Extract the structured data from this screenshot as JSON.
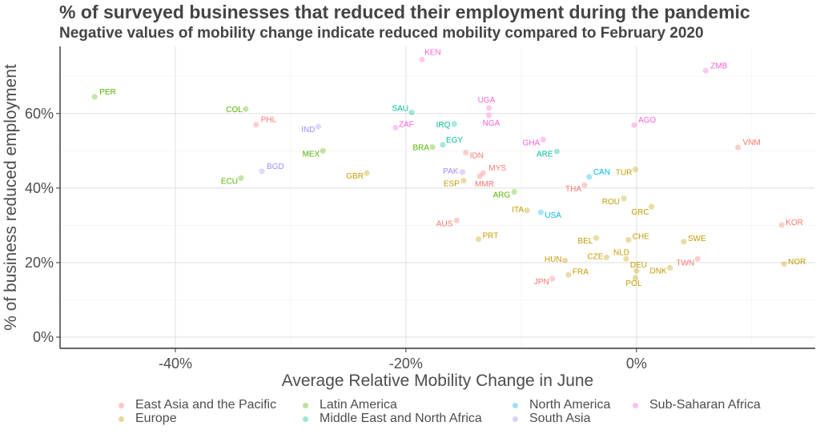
{
  "chart_data": {
    "type": "scatter",
    "title": "% of surveyed businesses that reduced their employment during the pandemic",
    "subtitle": "Negative values of mobility change indicate reduced mobility compared to February 2020",
    "xlabel": "Average Relative Mobility Change in June",
    "ylabel": "% of business reduced employment",
    "xlim": [
      -50,
      15.5
    ],
    "ylim": [
      -3,
      78
    ],
    "x_ticks": [
      -40,
      -20,
      0
    ],
    "x_tick_labels": [
      "-40%",
      "-20%",
      "0%"
    ],
    "y_ticks": [
      0,
      20,
      40,
      60
    ],
    "y_tick_labels": [
      "0%",
      "20%",
      "40%",
      "60%"
    ],
    "grid": true,
    "legend_position": "bottom",
    "series": [
      {
        "name": "East Asia and the Pacific",
        "color": "#F8766D",
        "points": [
          {
            "label": "PHL",
            "x": -33.0,
            "y": 57.0
          },
          {
            "label": "IDN",
            "x": -14.8,
            "y": 49.5
          },
          {
            "label": "MYS",
            "x": -13.3,
            "y": 44.0
          },
          {
            "label": "MMR",
            "x": -13.6,
            "y": 43.2
          },
          {
            "label": "AUS",
            "x": -15.6,
            "y": 31.3
          },
          {
            "label": "THA",
            "x": -4.5,
            "y": 40.8
          },
          {
            "label": "JPN",
            "x": -7.3,
            "y": 15.7
          },
          {
            "label": "VNM",
            "x": 8.8,
            "y": 50.9
          },
          {
            "label": "KOR",
            "x": 12.6,
            "y": 30.1
          },
          {
            "label": "TWN",
            "x": 5.3,
            "y": 21.0
          }
        ]
      },
      {
        "name": "Europe",
        "color": "#C49A00",
        "points": [
          {
            "label": "GBR",
            "x": -23.4,
            "y": 44.0
          },
          {
            "label": "ESP",
            "x": -15.0,
            "y": 42.0
          },
          {
            "label": "ITA",
            "x": -9.5,
            "y": 34.0
          },
          {
            "label": "PRT",
            "x": -13.7,
            "y": 26.3
          },
          {
            "label": "TUR",
            "x": -0.1,
            "y": 45.0
          },
          {
            "label": "ROU",
            "x": -1.1,
            "y": 37.2
          },
          {
            "label": "GRC",
            "x": 1.3,
            "y": 35.0
          },
          {
            "label": "BEL",
            "x": -3.5,
            "y": 26.6
          },
          {
            "label": "CHE",
            "x": -0.7,
            "y": 26.1
          },
          {
            "label": "SWE",
            "x": 4.1,
            "y": 25.6
          },
          {
            "label": "HUN",
            "x": -6.2,
            "y": 20.6
          },
          {
            "label": "CZE",
            "x": -2.6,
            "y": 21.4
          },
          {
            "label": "NLD",
            "x": -0.9,
            "y": 21.0
          },
          {
            "label": "DEU",
            "x": 0.0,
            "y": 17.8
          },
          {
            "label": "FRA",
            "x": -5.9,
            "y": 16.7
          },
          {
            "label": "DNK",
            "x": 2.9,
            "y": 18.6
          },
          {
            "label": "POL",
            "x": -0.1,
            "y": 15.9
          },
          {
            "label": "NOR",
            "x": 12.8,
            "y": 19.6
          }
        ]
      },
      {
        "name": "Latin America",
        "color": "#53B400",
        "points": [
          {
            "label": "PER",
            "x": -47.0,
            "y": 64.5
          },
          {
            "label": "COL",
            "x": -33.9,
            "y": 61.2
          },
          {
            "label": "MEX",
            "x": -27.2,
            "y": 50.0
          },
          {
            "label": "ECU",
            "x": -34.3,
            "y": 42.7
          },
          {
            "label": "BRA",
            "x": -17.7,
            "y": 51.0
          },
          {
            "label": "ARG",
            "x": -10.6,
            "y": 39.0
          }
        ]
      },
      {
        "name": "Middle East and North Africa",
        "color": "#00C094",
        "points": [
          {
            "label": "SAU",
            "x": -19.5,
            "y": 60.3
          },
          {
            "label": "IRQ",
            "x": -15.8,
            "y": 57.2
          },
          {
            "label": "EGY",
            "x": -16.8,
            "y": 51.6
          },
          {
            "label": "ARE",
            "x": -6.9,
            "y": 49.8
          }
        ]
      },
      {
        "name": "North America",
        "color": "#00B6EB",
        "points": [
          {
            "label": "CAN",
            "x": -4.1,
            "y": 43.0
          },
          {
            "label": "USA",
            "x": -8.3,
            "y": 33.5
          }
        ]
      },
      {
        "name": "South Asia",
        "color": "#A58AFF",
        "points": [
          {
            "label": "IND",
            "x": -27.6,
            "y": 56.5
          },
          {
            "label": "BGD",
            "x": -32.5,
            "y": 44.5
          },
          {
            "label": "PAK",
            "x": -15.1,
            "y": 44.3
          }
        ]
      },
      {
        "name": "Sub-Saharan Africa",
        "color": "#FB61D7",
        "points": [
          {
            "label": "KEN",
            "x": -18.6,
            "y": 74.5
          },
          {
            "label": "UGA",
            "x": -12.8,
            "y": 61.5
          },
          {
            "label": "NGA",
            "x": -12.8,
            "y": 59.5
          },
          {
            "label": "ZAF",
            "x": -20.9,
            "y": 56.2
          },
          {
            "label": "GHA",
            "x": -8.1,
            "y": 53.0
          },
          {
            "label": "ZMB",
            "x": 6.0,
            "y": 71.5
          },
          {
            "label": "AGO",
            "x": -0.2,
            "y": 56.9
          }
        ]
      }
    ]
  }
}
